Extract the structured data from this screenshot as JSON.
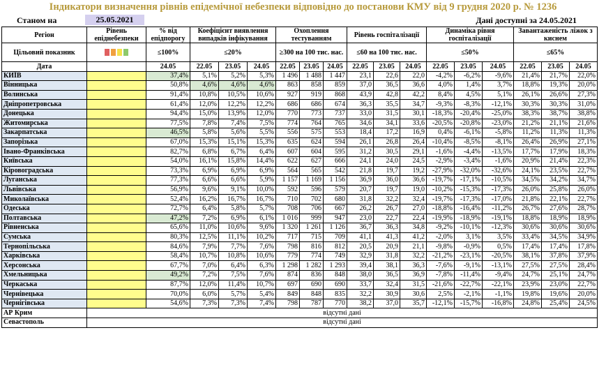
{
  "title": "Індикатори визначення рівнів епідемічної небезпеки відповідно до постанови КМУ від 9 грудня 2020 р. № 1236",
  "as_of_label": "Станом на",
  "as_of_date": "25.05.2021",
  "data_available": "Дані доступні за 24.05.2021",
  "headers": {
    "region_top": "Регіон",
    "region_mid": "Цільовий показник",
    "region_bottom": "Дата",
    "level": "Рівень епіднебезпеки",
    "pct": "% від епідпорогу",
    "pct_target": "≤100%",
    "coef": "Коефіцієнт виявлення випадків інфікування",
    "coef_target": "≤20%",
    "test": "Охоплення тестуванням",
    "test_target": "≥300 на 100 тис. нас.",
    "hosp": "Рівень госпіталізації",
    "hosp_target": "≤60 на 100 тис. нас.",
    "dyn": "Динаміка рівня госпіталізації",
    "dyn_target": "≤50%",
    "beds": "Завантаженість ліжок з киснем",
    "beds_target": "≤65%"
  },
  "legend_colors": [
    "#e06060",
    "#f0a040",
    "#f5e14a",
    "#8ec96b"
  ],
  "pct_date": "24.05",
  "dates": [
    "22.05",
    "23.05",
    "24.05"
  ],
  "no_data": "відсутні дані",
  "rows": [
    {
      "name": "КИЇВ",
      "pct": "37,4%",
      "pct_green": true,
      "coef": [
        "5,1%",
        "5,2%",
        "5,3%"
      ],
      "coef_green": false,
      "test": [
        "1 496",
        "1 488",
        "1 447"
      ],
      "hosp": [
        "23,1",
        "22,6",
        "22,0"
      ],
      "dyn": [
        "-4,2%",
        "-6,2%",
        "-9,6%"
      ],
      "beds": [
        "21,4%",
        "21,7%",
        "22,0%"
      ]
    },
    {
      "name": "Вінницька",
      "pct": "50,8%",
      "pct_green": false,
      "coef": [
        "4,6%",
        "4,6%",
        "4,6%"
      ],
      "coef_green": true,
      "test": [
        "863",
        "858",
        "859"
      ],
      "hosp": [
        "37,0",
        "36,5",
        "36,6"
      ],
      "dyn": [
        "4,0%",
        "1,4%",
        "3,7%"
      ],
      "beds": [
        "18,8%",
        "19,3%",
        "20,0%"
      ]
    },
    {
      "name": "Волинська",
      "pct": "91,4%",
      "pct_green": false,
      "coef": [
        "10,8%",
        "10,5%",
        "10,6%"
      ],
      "coef_green": false,
      "test": [
        "927",
        "919",
        "868"
      ],
      "hosp": [
        "43,9",
        "42,8",
        "42,2"
      ],
      "dyn": [
        "8,4%",
        "4,5%",
        "5,1%"
      ],
      "beds": [
        "26,1%",
        "26,6%",
        "27,3%"
      ]
    },
    {
      "name": "Дніпропетровська",
      "pct": "61,4%",
      "pct_green": false,
      "coef": [
        "12,0%",
        "12,2%",
        "12,2%"
      ],
      "coef_green": false,
      "test": [
        "686",
        "686",
        "674"
      ],
      "hosp": [
        "36,3",
        "35,5",
        "34,7"
      ],
      "dyn": [
        "-9,3%",
        "-8,3%",
        "-12,1%"
      ],
      "beds": [
        "30,3%",
        "30,3%",
        "31,0%"
      ]
    },
    {
      "name": "Донецька",
      "pct": "94,4%",
      "pct_green": false,
      "coef": [
        "15,0%",
        "13,9%",
        "12,0%"
      ],
      "coef_green": false,
      "test": [
        "770",
        "773",
        "737"
      ],
      "hosp": [
        "33,0",
        "31,5",
        "30,1"
      ],
      "dyn": [
        "-18,3%",
        "-20,4%",
        "-25,0%"
      ],
      "beds": [
        "38,3%",
        "38,7%",
        "38,8%"
      ]
    },
    {
      "name": "Житомирська",
      "pct": "77,5%",
      "pct_green": false,
      "coef": [
        "7,8%",
        "7,4%",
        "7,5%"
      ],
      "coef_green": false,
      "test": [
        "774",
        "764",
        "765"
      ],
      "hosp": [
        "34,6",
        "34,1",
        "33,6"
      ],
      "dyn": [
        "-20,5%",
        "-20,8%",
        "-23,0%"
      ],
      "beds": [
        "21,2%",
        "21,1%",
        "21,6%"
      ]
    },
    {
      "name": "Закарпатська",
      "pct": "46,5%",
      "pct_green": true,
      "coef": [
        "5,8%",
        "5,6%",
        "5,5%"
      ],
      "coef_green": false,
      "test": [
        "556",
        "575",
        "553"
      ],
      "hosp": [
        "18,4",
        "17,2",
        "16,9"
      ],
      "dyn": [
        "0,4%",
        "-6,1%",
        "-5,8%"
      ],
      "beds": [
        "11,2%",
        "11,3%",
        "11,3%"
      ]
    },
    {
      "name": "Запорізька",
      "pct": "67,0%",
      "pct_green": false,
      "coef": [
        "15,3%",
        "15,1%",
        "15,3%"
      ],
      "coef_green": false,
      "test": [
        "635",
        "624",
        "594"
      ],
      "hosp": [
        "26,1",
        "26,8",
        "26,4"
      ],
      "dyn": [
        "-10,4%",
        "-8,5%",
        "-8,1%"
      ],
      "beds": [
        "26,4%",
        "26,9%",
        "27,1%"
      ]
    },
    {
      "name": "Івано-Франківська",
      "pct": "82,7%",
      "pct_green": false,
      "coef": [
        "6,8%",
        "6,7%",
        "6,4%"
      ],
      "coef_green": false,
      "test": [
        "607",
        "604",
        "595"
      ],
      "hosp": [
        "31,2",
        "30,5",
        "29,1"
      ],
      "dyn": [
        "-1,6%",
        "-4,4%",
        "-13,5%"
      ],
      "beds": [
        "17,7%",
        "17,9%",
        "18,3%"
      ]
    },
    {
      "name": "Київська",
      "pct": "54,0%",
      "pct_green": false,
      "coef": [
        "16,1%",
        "15,8%",
        "14,4%"
      ],
      "coef_green": false,
      "test": [
        "622",
        "627",
        "666"
      ],
      "hosp": [
        "24,1",
        "24,0",
        "24,5"
      ],
      "dyn": [
        "-2,9%",
        "-3,4%",
        "-1,6%"
      ],
      "beds": [
        "20,9%",
        "21,4%",
        "22,3%"
      ]
    },
    {
      "name": "Кіровоградська",
      "pct": "73,3%",
      "pct_green": false,
      "coef": [
        "6,9%",
        "6,9%",
        "6,9%"
      ],
      "coef_green": false,
      "test": [
        "564",
        "565",
        "542"
      ],
      "hosp": [
        "21,8",
        "19,7",
        "19,2"
      ],
      "dyn": [
        "-27,9%",
        "-32,0%",
        "-32,6%"
      ],
      "beds": [
        "24,1%",
        "23,5%",
        "22,7%"
      ]
    },
    {
      "name": "Луганська",
      "pct": "77,3%",
      "pct_green": false,
      "coef": [
        "6,6%",
        "6,6%",
        "5,9%"
      ],
      "coef_green": false,
      "test": [
        "1 157",
        "1 169",
        "1 156"
      ],
      "hosp": [
        "36,9",
        "36,0",
        "36,6"
      ],
      "dyn": [
        "-19,7%",
        "-17,1%",
        "-10,5%"
      ],
      "beds": [
        "34,5%",
        "34,2%",
        "34,7%"
      ]
    },
    {
      "name": "Львівська",
      "pct": "56,9%",
      "pct_green": false,
      "coef": [
        "9,6%",
        "9,1%",
        "10,0%"
      ],
      "coef_green": false,
      "test": [
        "592",
        "596",
        "579"
      ],
      "hosp": [
        "20,7",
        "19,7",
        "19,0"
      ],
      "dyn": [
        "-10,2%",
        "-15,3%",
        "-17,3%"
      ],
      "beds": [
        "26,0%",
        "25,8%",
        "26,0%"
      ]
    },
    {
      "name": "Миколаївська",
      "pct": "52,4%",
      "pct_green": false,
      "coef": [
        "16,2%",
        "16,7%",
        "16,7%"
      ],
      "coef_green": false,
      "test": [
        "710",
        "702",
        "680"
      ],
      "hosp": [
        "31,8",
        "32,2",
        "32,4"
      ],
      "dyn": [
        "-19,7%",
        "-17,3%",
        "-17,0%"
      ],
      "beds": [
        "21,8%",
        "22,1%",
        "22,7%"
      ]
    },
    {
      "name": "Одеська",
      "pct": "72,7%",
      "pct_green": false,
      "coef": [
        "6,4%",
        "5,8%",
        "5,7%"
      ],
      "coef_green": false,
      "test": [
        "708",
        "706",
        "667"
      ],
      "hosp": [
        "26,2",
        "26,7",
        "27,0"
      ],
      "dyn": [
        "-18,8%",
        "-16,4%",
        "-11,2%"
      ],
      "beds": [
        "26,7%",
        "27,6%",
        "28,7%"
      ]
    },
    {
      "name": "Полтавська",
      "pct": "47,2%",
      "pct_green": true,
      "coef": [
        "7,2%",
        "6,9%",
        "6,1%"
      ],
      "coef_green": false,
      "test": [
        "1 016",
        "999",
        "947"
      ],
      "hosp": [
        "23,0",
        "22,7",
        "22,4"
      ],
      "dyn": [
        "-19,9%",
        "-18,9%",
        "-19,1%"
      ],
      "beds": [
        "18,8%",
        "18,9%",
        "18,9%"
      ]
    },
    {
      "name": "Рівненська",
      "pct": "65,6%",
      "pct_green": false,
      "coef": [
        "11,0%",
        "10,6%",
        "9,6%"
      ],
      "coef_green": false,
      "test": [
        "1 320",
        "1 261",
        "1 126"
      ],
      "hosp": [
        "36,7",
        "36,3",
        "34,8"
      ],
      "dyn": [
        "-9,2%",
        "-10,1%",
        "-12,3%"
      ],
      "beds": [
        "30,6%",
        "30,6%",
        "30,6%"
      ]
    },
    {
      "name": "Сумська",
      "pct": "80,3%",
      "pct_green": false,
      "coef": [
        "12,5%",
        "11,1%",
        "10,2%"
      ],
      "coef_green": false,
      "test": [
        "717",
        "715",
        "709"
      ],
      "hosp": [
        "41,1",
        "41,3",
        "41,2"
      ],
      "dyn": [
        "-2,0%",
        "3,1%",
        "3,5%"
      ],
      "beds": [
        "33,4%",
        "34,5%",
        "34,9%"
      ]
    },
    {
      "name": "Тернопільська",
      "pct": "84,6%",
      "pct_green": false,
      "coef": [
        "7,9%",
        "7,7%",
        "7,6%"
      ],
      "coef_green": false,
      "test": [
        "798",
        "816",
        "812"
      ],
      "hosp": [
        "20,5",
        "20,9",
        "21,1"
      ],
      "dyn": [
        "-9,8%",
        "-0,9%",
        "0,5%"
      ],
      "beds": [
        "17,4%",
        "17,4%",
        "17,8%"
      ]
    },
    {
      "name": "Харківська",
      "pct": "58,4%",
      "pct_green": false,
      "coef": [
        "10,7%",
        "10,8%",
        "10,6%"
      ],
      "coef_green": false,
      "test": [
        "779",
        "774",
        "749"
      ],
      "hosp": [
        "32,9",
        "31,8",
        "32,2"
      ],
      "dyn": [
        "-21,2%",
        "-23,1%",
        "-20,5%"
      ],
      "beds": [
        "38,1%",
        "37,8%",
        "37,9%"
      ]
    },
    {
      "name": "Херсонська",
      "pct": "67,7%",
      "pct_green": false,
      "coef": [
        "7,0%",
        "6,4%",
        "6,3%"
      ],
      "coef_green": false,
      "test": [
        "1 298",
        "1 282",
        "1 293"
      ],
      "hosp": [
        "39,4",
        "38,1",
        "36,3"
      ],
      "dyn": [
        "-7,6%",
        "-9,1%",
        "-13,1%"
      ],
      "beds": [
        "27,5%",
        "27,5%",
        "28,4%"
      ]
    },
    {
      "name": "Хмельницька",
      "pct": "49,2%",
      "pct_green": true,
      "coef": [
        "7,2%",
        "7,5%",
        "7,6%"
      ],
      "coef_green": false,
      "test": [
        "874",
        "836",
        "848"
      ],
      "hosp": [
        "38,0",
        "36,5",
        "36,9"
      ],
      "dyn": [
        "-7,8%",
        "-11,4%",
        "-9,4%"
      ],
      "beds": [
        "24,7%",
        "25,1%",
        "24,7%"
      ]
    },
    {
      "name": "Черкаська",
      "pct": "87,7%",
      "pct_green": false,
      "coef": [
        "12,0%",
        "11,4%",
        "10,7%"
      ],
      "coef_green": false,
      "test": [
        "697",
        "690",
        "690"
      ],
      "hosp": [
        "33,7",
        "32,4",
        "31,5"
      ],
      "dyn": [
        "-21,6%",
        "-22,7%",
        "-22,1%"
      ],
      "beds": [
        "23,9%",
        "23,0%",
        "22,7%"
      ]
    },
    {
      "name": "Чернівецька",
      "pct": "70,0%",
      "pct_green": false,
      "coef": [
        "6,0%",
        "5,7%",
        "5,4%"
      ],
      "coef_green": false,
      "test": [
        "849",
        "848",
        "835"
      ],
      "hosp": [
        "32,2",
        "30,9",
        "30,6"
      ],
      "dyn": [
        "2,5%",
        "-2,1%",
        "-1,1%"
      ],
      "beds": [
        "19,8%",
        "19,6%",
        "20,0%"
      ]
    },
    {
      "name": "Чернігівська",
      "pct": "54,6%",
      "pct_green": false,
      "coef": [
        "7,3%",
        "7,3%",
        "7,4%"
      ],
      "coef_green": false,
      "test": [
        "798",
        "787",
        "770"
      ],
      "hosp": [
        "38,2",
        "37,0",
        "35,7"
      ],
      "dyn": [
        "-12,1%",
        "-15,7%",
        "-16,8%"
      ],
      "beds": [
        "24,8%",
        "25,4%",
        "24,5%"
      ]
    }
  ],
  "missing_rows": [
    "АР Крим",
    "Севастополь"
  ]
}
